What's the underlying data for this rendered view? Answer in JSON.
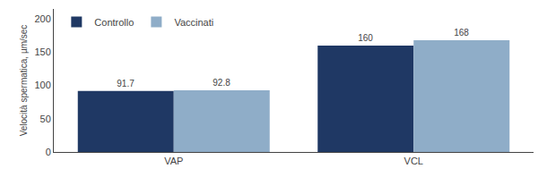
{
  "chart_data": {
    "type": "bar",
    "categories": [
      "VAP",
      "VCL"
    ],
    "series": [
      {
        "name": "Controllo",
        "color": "#1f3864",
        "values": [
          91.7,
          160
        ]
      },
      {
        "name": "Vaccinati",
        "color": "#8fadc8",
        "values": [
          92.8,
          168
        ]
      }
    ],
    "ylabel": "Velocità spermatica, µm/sec",
    "ylim": [
      0,
      215
    ],
    "yticks": [
      0,
      50,
      100,
      150,
      200
    ],
    "data_labels": true,
    "grid": false,
    "legend": "upper left"
  }
}
